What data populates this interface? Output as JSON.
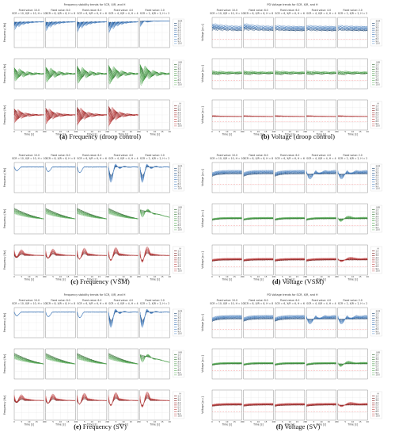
{
  "figure": {
    "panels": [
      {
        "label": "(a)",
        "name": "Frequency (droop control)",
        "kind": "freq",
        "style": "droop",
        "suptitle": "Frequency stability trends for SCR, X/R, and H",
        "legend_labels": [
          "SCR",
          "X/R",
          "H"
        ]
      },
      {
        "label": "(b)",
        "name": "Voltage (droop control)",
        "kind": "volt",
        "style": "droop",
        "suptitle": "PD Voltage trends for SCR, X/R, and H",
        "legend_labels": [
          "SCR",
          "X/R",
          "H"
        ]
      },
      {
        "label": "(c)",
        "name": "Frequency (VSM)",
        "kind": "freq",
        "style": "vsm",
        "suptitle": "",
        "legend_labels": [
          "SCR",
          "X/R",
          "H"
        ]
      },
      {
        "label": "(d)",
        "name": "Voltage (VSM)",
        "kind": "volt",
        "style": "vsm",
        "suptitle": "",
        "legend_labels": [
          "SCR",
          "X/R",
          "H"
        ]
      },
      {
        "label": "(e)",
        "name": "Frequency (SV)",
        "kind": "freq",
        "style": "sv",
        "suptitle": "Frequency stability trends for SCR, X/R, and H",
        "legend_labels": [
          "SCR",
          "X/R",
          "H"
        ]
      },
      {
        "label": "(f)",
        "name": "Voltage (SV)",
        "kind": "volt",
        "style": "sv",
        "suptitle": "PD Voltage trends for SCR, X/R, and H",
        "legend_labels": [
          "SCR",
          "X/R",
          "H"
        ]
      }
    ],
    "column_titles": [
      [
        "Fixed value: 10.0",
        "SCR = 10, X/R = 10, H = 10"
      ],
      [
        "Fixed value: 8.0",
        "SCR = 8, X/R = 8, H = 8"
      ],
      [
        "Fixed value: 6.0",
        "SCR = 6, X/R = 6, H = 6"
      ],
      [
        "Fixed value: 4.0",
        "SCR = 4, X/R = 4, H = 4"
      ],
      [
        "Fixed value: 2.0",
        "SCR = 2, X/R = 2, H = 2"
      ]
    ],
    "freq_ylabels": [
      "Frequency [Hz]",
      "Frequency [Hz]",
      "Frequency [Hz]"
    ],
    "volt_ylabels": [
      "Voltage [p.u.]",
      "Voltage [p.u.]",
      "Voltage [p.u.]"
    ],
    "xlabel": "Time [s]",
    "legend_values": [
      "1.0",
      "2.0",
      "3.0",
      "4.0",
      "5.0",
      "6.0",
      "7.0",
      "8.0",
      "9.0",
      "10.0"
    ],
    "colors": {
      "row1": "#2a6bb5",
      "row2": "#3a9a3a",
      "row3": "#b52a2a",
      "grid": "#e6e6e6",
      "axis": "#777777"
    }
  },
  "chart_data": [
    {
      "type": "line",
      "panel": "(a)",
      "title": "Frequency (droop control)",
      "xlabel": "Time [s]",
      "ylabel": "Frequency [Hz]",
      "grid": true,
      "legend_placement": "right",
      "rows": 3,
      "columns": 5
    },
    {
      "type": "line",
      "panel": "(b)",
      "title": "Voltage (droop control)",
      "xlabel": "Time [s]",
      "ylabel": "Voltage [p.u.]",
      "grid": true,
      "legend_placement": "right",
      "rows": 3,
      "columns": 5
    },
    {
      "type": "line",
      "panel": "(c)",
      "title": "Frequency (VSM)",
      "xlabel": "Time [s]",
      "ylabel": "Frequency [Hz]",
      "grid": true,
      "legend_placement": "right",
      "rows": 3,
      "columns": 5
    },
    {
      "type": "line",
      "panel": "(d)",
      "title": "Voltage (VSM)",
      "xlabel": "Time [s]",
      "ylabel": "Voltage [p.u.]",
      "grid": true,
      "legend_placement": "right",
      "rows": 3,
      "columns": 5
    },
    {
      "type": "line",
      "panel": "(e)",
      "title": "Frequency (SV)",
      "xlabel": "Time [s]",
      "ylabel": "Frequency [Hz]",
      "grid": true,
      "legend_placement": "right",
      "rows": 3,
      "columns": 5
    },
    {
      "type": "line",
      "panel": "(f)",
      "title": "Voltage (SV)",
      "xlabel": "Time [s]",
      "ylabel": "Voltage [p.u.]",
      "grid": true,
      "legend_placement": "right",
      "rows": 3,
      "columns": 5
    }
  ]
}
